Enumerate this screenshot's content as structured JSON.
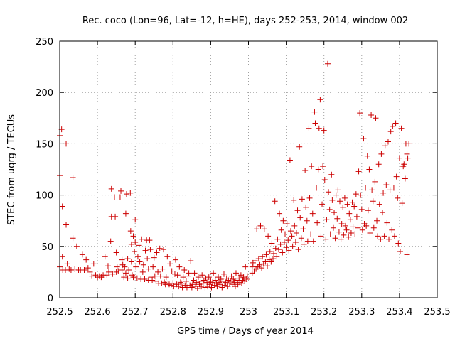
{
  "chart_data": {
    "type": "scatter",
    "title": "Rec. coco (Lon=96, Lat=-12, h=HE), days 252-253, 2014, window 002",
    "xlabel": "GPS time / Days of year 2014",
    "ylabel": "STEC from uqrg / TECUs",
    "xlim": [
      252.5,
      253.5
    ],
    "ylim": [
      0,
      250
    ],
    "xticks": [
      "252.5",
      "252.6",
      "252.7",
      "252.8",
      "252.9",
      "253",
      "253.1",
      "253.2",
      "253.3",
      "253.4",
      "253.5"
    ],
    "yticks": [
      "0",
      "50",
      "100",
      "150",
      "200",
      "250"
    ],
    "grid": true,
    "marker": "+",
    "color": "#cc0000",
    "points": [
      [
        252.5,
        30
      ],
      [
        252.5,
        119
      ],
      [
        252.5,
        158
      ],
      [
        252.505,
        164
      ],
      [
        252.507,
        89
      ],
      [
        252.507,
        40
      ],
      [
        252.508,
        27
      ],
      [
        252.515,
        27
      ],
      [
        252.517,
        150
      ],
      [
        252.517,
        71
      ],
      [
        252.52,
        33
      ],
      [
        252.525,
        28
      ],
      [
        252.53,
        27
      ],
      [
        252.535,
        117
      ],
      [
        252.535,
        58
      ],
      [
        252.54,
        28
      ],
      [
        252.545,
        50
      ],
      [
        252.55,
        27
      ],
      [
        252.555,
        27
      ],
      [
        252.56,
        42
      ],
      [
        252.565,
        27
      ],
      [
        252.57,
        37
      ],
      [
        252.575,
        29
      ],
      [
        252.58,
        25
      ],
      [
        252.585,
        21
      ],
      [
        252.59,
        33
      ],
      [
        252.595,
        22
      ],
      [
        252.6,
        20
      ],
      [
        252.605,
        21
      ],
      [
        252.61,
        20
      ],
      [
        252.615,
        22
      ],
      [
        252.62,
        40
      ],
      [
        252.625,
        22
      ],
      [
        252.628,
        31
      ],
      [
        252.63,
        25
      ],
      [
        252.635,
        55
      ],
      [
        252.637,
        79
      ],
      [
        252.637,
        106
      ],
      [
        252.64,
        23
      ],
      [
        252.645,
        98
      ],
      [
        252.647,
        79
      ],
      [
        252.65,
        25
      ],
      [
        252.65,
        44
      ],
      [
        252.652,
        30
      ],
      [
        252.655,
        26
      ],
      [
        252.66,
        98
      ],
      [
        252.662,
        104
      ],
      [
        252.665,
        37
      ],
      [
        252.665,
        27
      ],
      [
        252.667,
        32
      ],
      [
        252.67,
        20
      ],
      [
        252.672,
        30
      ],
      [
        252.675,
        24
      ],
      [
        252.675,
        82
      ],
      [
        252.677,
        101
      ],
      [
        252.68,
        19
      ],
      [
        252.68,
        38
      ],
      [
        252.683,
        27
      ],
      [
        252.687,
        102
      ],
      [
        252.688,
        65
      ],
      [
        252.69,
        52
      ],
      [
        252.69,
        35
      ],
      [
        252.692,
        22
      ],
      [
        252.695,
        20
      ],
      [
        252.695,
        60
      ],
      [
        252.698,
        45
      ],
      [
        252.7,
        76
      ],
      [
        252.7,
        54
      ],
      [
        252.702,
        30
      ],
      [
        252.705,
        19
      ],
      [
        252.707,
        40
      ],
      [
        252.71,
        51
      ],
      [
        252.712,
        35
      ],
      [
        252.715,
        18
      ],
      [
        252.717,
        57
      ],
      [
        252.72,
        25
      ],
      [
        252.722,
        32
      ],
      [
        252.725,
        18
      ],
      [
        252.727,
        46
      ],
      [
        252.73,
        56
      ],
      [
        252.732,
        38
      ],
      [
        252.735,
        17
      ],
      [
        252.735,
        28
      ],
      [
        252.738,
        56
      ],
      [
        252.74,
        47
      ],
      [
        252.742,
        20
      ],
      [
        252.745,
        17
      ],
      [
        252.747,
        30
      ],
      [
        252.75,
        39
      ],
      [
        252.752,
        21
      ],
      [
        252.755,
        16
      ],
      [
        252.757,
        44
      ],
      [
        252.76,
        25
      ],
      [
        252.762,
        14
      ],
      [
        252.765,
        48
      ],
      [
        252.767,
        21
      ],
      [
        252.77,
        14
      ],
      [
        252.772,
        28
      ],
      [
        252.775,
        47
      ],
      [
        252.777,
        15
      ],
      [
        252.78,
        13
      ],
      [
        252.782,
        20
      ],
      [
        252.785,
        40
      ],
      [
        252.787,
        14
      ],
      [
        252.79,
        13
      ],
      [
        252.792,
        33
      ],
      [
        252.795,
        12
      ],
      [
        252.797,
        26
      ],
      [
        252.8,
        14
      ],
      [
        252.802,
        11
      ],
      [
        252.805,
        23
      ],
      [
        252.807,
        37
      ],
      [
        252.81,
        13
      ],
      [
        252.812,
        22
      ],
      [
        252.815,
        11
      ],
      [
        252.817,
        30
      ],
      [
        252.82,
        15
      ],
      [
        252.822,
        14
      ],
      [
        252.825,
        10
      ],
      [
        252.827,
        20
      ],
      [
        252.83,
        27
      ],
      [
        252.832,
        12
      ],
      [
        252.835,
        16
      ],
      [
        252.837,
        10
      ],
      [
        252.84,
        21
      ],
      [
        252.842,
        24
      ],
      [
        252.845,
        12
      ],
      [
        252.847,
        36
      ],
      [
        252.85,
        10
      ],
      [
        252.852,
        13
      ],
      [
        252.855,
        17
      ],
      [
        252.857,
        24
      ],
      [
        252.86,
        11
      ],
      [
        252.862,
        15
      ],
      [
        252.865,
        9
      ],
      [
        252.867,
        20
      ],
      [
        252.87,
        13
      ],
      [
        252.872,
        16
      ],
      [
        252.875,
        11
      ],
      [
        252.877,
        22
      ],
      [
        252.88,
        14
      ],
      [
        252.882,
        17
      ],
      [
        252.885,
        10
      ],
      [
        252.887,
        19
      ],
      [
        252.89,
        15
      ],
      [
        252.892,
        11
      ],
      [
        252.895,
        20
      ],
      [
        252.897,
        13
      ],
      [
        252.9,
        16
      ],
      [
        252.902,
        10
      ],
      [
        252.905,
        15
      ],
      [
        252.907,
        24
      ],
      [
        252.91,
        12
      ],
      [
        252.912,
        17
      ],
      [
        252.915,
        14
      ],
      [
        252.917,
        11
      ],
      [
        252.92,
        20
      ],
      [
        252.922,
        15
      ],
      [
        252.925,
        13
      ],
      [
        252.927,
        18
      ],
      [
        252.93,
        10
      ],
      [
        252.932,
        16
      ],
      [
        252.935,
        23
      ],
      [
        252.937,
        12
      ],
      [
        252.94,
        15
      ],
      [
        252.942,
        19
      ],
      [
        252.945,
        11
      ],
      [
        252.947,
        17
      ],
      [
        252.95,
        14
      ],
      [
        252.952,
        16
      ],
      [
        252.955,
        21
      ],
      [
        252.957,
        13
      ],
      [
        252.96,
        18
      ],
      [
        252.962,
        15
      ],
      [
        252.965,
        11
      ],
      [
        252.967,
        24
      ],
      [
        252.97,
        17
      ],
      [
        252.972,
        13
      ],
      [
        252.975,
        19
      ],
      [
        252.977,
        15
      ],
      [
        252.98,
        22
      ],
      [
        252.982,
        14
      ],
      [
        252.985,
        17
      ],
      [
        252.987,
        20
      ],
      [
        252.99,
        16
      ],
      [
        252.992,
        30
      ],
      [
        252.995,
        18
      ],
      [
        252.997,
        21
      ],
      [
        253.01,
        24
      ],
      [
        253.01,
        30
      ],
      [
        253.012,
        34
      ],
      [
        253.015,
        26
      ],
      [
        253.017,
        36
      ],
      [
        253.02,
        28
      ],
      [
        253.022,
        67
      ],
      [
        253.025,
        30
      ],
      [
        253.027,
        38
      ],
      [
        253.03,
        32
      ],
      [
        253.032,
        70
      ],
      [
        253.035,
        29
      ],
      [
        253.037,
        40
      ],
      [
        253.04,
        33
      ],
      [
        253.042,
        67
      ],
      [
        253.045,
        35
      ],
      [
        253.047,
        42
      ],
      [
        253.05,
        31
      ],
      [
        253.052,
        60
      ],
      [
        253.055,
        37
      ],
      [
        253.057,
        45
      ],
      [
        253.06,
        35
      ],
      [
        253.062,
        53
      ],
      [
        253.065,
        38
      ],
      [
        253.067,
        43
      ],
      [
        253.07,
        94
      ],
      [
        253.072,
        48
      ],
      [
        253.075,
        40
      ],
      [
        253.077,
        57
      ],
      [
        253.08,
        47
      ],
      [
        253.082,
        82
      ],
      [
        253.085,
        52
      ],
      [
        253.087,
        66
      ],
      [
        253.09,
        44
      ],
      [
        253.092,
        75
      ],
      [
        253.095,
        54
      ],
      [
        253.097,
        62
      ],
      [
        253.1,
        49
      ],
      [
        253.102,
        72
      ],
      [
        253.105,
        56
      ],
      [
        253.107,
        46
      ],
      [
        253.11,
        134
      ],
      [
        253.112,
        65
      ],
      [
        253.115,
        60
      ],
      [
        253.117,
        50
      ],
      [
        253.12,
        95
      ],
      [
        253.122,
        70
      ],
      [
        253.125,
        54
      ],
      [
        253.127,
        63
      ],
      [
        253.13,
        85
      ],
      [
        253.132,
        47
      ],
      [
        253.135,
        147
      ],
      [
        253.137,
        78
      ],
      [
        253.14,
        58
      ],
      [
        253.142,
        96
      ],
      [
        253.145,
        67
      ],
      [
        253.147,
        52
      ],
      [
        253.15,
        124
      ],
      [
        253.152,
        88
      ],
      [
        253.155,
        75
      ],
      [
        253.157,
        55
      ],
      [
        253.16,
        165
      ],
      [
        253.162,
        97
      ],
      [
        253.165,
        62
      ],
      [
        253.167,
        128
      ],
      [
        253.17,
        82
      ],
      [
        253.172,
        55
      ],
      [
        253.175,
        181
      ],
      [
        253.177,
        170
      ],
      [
        253.18,
        107
      ],
      [
        253.182,
        73
      ],
      [
        253.185,
        125
      ],
      [
        253.187,
        165
      ],
      [
        253.19,
        193
      ],
      [
        253.192,
        60
      ],
      [
        253.195,
        91
      ],
      [
        253.197,
        128
      ],
      [
        253.2,
        163
      ],
      [
        253.202,
        115
      ],
      [
        253.205,
        57
      ],
      [
        253.207,
        76
      ],
      [
        253.21,
        228
      ],
      [
        253.212,
        103
      ],
      [
        253.215,
        86
      ],
      [
        253.217,
        62
      ],
      [
        253.22,
        120
      ],
      [
        253.222,
        95
      ],
      [
        253.225,
        68
      ],
      [
        253.227,
        83
      ],
      [
        253.23,
        58
      ],
      [
        253.232,
        100
      ],
      [
        253.235,
        77
      ],
      [
        253.237,
        105
      ],
      [
        253.24,
        64
      ],
      [
        253.242,
        94
      ],
      [
        253.245,
        57
      ],
      [
        253.247,
        72
      ],
      [
        253.25,
        88
      ],
      [
        253.252,
        61
      ],
      [
        253.255,
        97
      ],
      [
        253.257,
        70
      ],
      [
        253.26,
        66
      ],
      [
        253.262,
        91
      ],
      [
        253.265,
        59
      ],
      [
        253.267,
        82
      ],
      [
        253.27,
        76
      ],
      [
        253.272,
        63
      ],
      [
        253.275,
        93
      ],
      [
        253.277,
        69
      ],
      [
        253.28,
        89
      ],
      [
        253.282,
        62
      ],
      [
        253.285,
        101
      ],
      [
        253.287,
        79
      ],
      [
        253.29,
        68
      ],
      [
        253.292,
        123
      ],
      [
        253.295,
        180
      ],
      [
        253.297,
        100
      ],
      [
        253.3,
        86
      ],
      [
        253.302,
        66
      ],
      [
        253.305,
        155
      ],
      [
        253.307,
        72
      ],
      [
        253.31,
        107
      ],
      [
        253.312,
        70
      ],
      [
        253.315,
        138
      ],
      [
        253.317,
        85
      ],
      [
        253.32,
        125
      ],
      [
        253.322,
        63
      ],
      [
        253.325,
        178
      ],
      [
        253.327,
        105
      ],
      [
        253.33,
        94
      ],
      [
        253.332,
        68
      ],
      [
        253.335,
        113
      ],
      [
        253.337,
        175
      ],
      [
        253.34,
        75
      ],
      [
        253.342,
        60
      ],
      [
        253.345,
        130
      ],
      [
        253.347,
        91
      ],
      [
        253.35,
        57
      ],
      [
        253.352,
        140
      ],
      [
        253.355,
        83
      ],
      [
        253.357,
        102
      ],
      [
        253.36,
        60
      ],
      [
        253.362,
        148
      ],
      [
        253.365,
        110
      ],
      [
        253.367,
        73
      ],
      [
        253.37,
        152
      ],
      [
        253.372,
        57
      ],
      [
        253.375,
        105
      ],
      [
        253.377,
        162
      ],
      [
        253.38,
        66
      ],
      [
        253.382,
        167
      ],
      [
        253.385,
        107
      ],
      [
        253.387,
        60
      ],
      [
        253.39,
        170
      ],
      [
        253.392,
        118
      ],
      [
        253.395,
        97
      ],
      [
        253.397,
        53
      ],
      [
        253.4,
        136
      ],
      [
        253.402,
        45
      ],
      [
        253.405,
        165
      ],
      [
        253.407,
        92
      ],
      [
        253.41,
        128
      ],
      [
        253.412,
        130
      ],
      [
        253.415,
        116
      ],
      [
        253.417,
        150
      ],
      [
        253.42,
        42
      ],
      [
        253.42,
        140
      ],
      [
        253.422,
        136
      ],
      [
        253.425,
        150
      ]
    ]
  }
}
